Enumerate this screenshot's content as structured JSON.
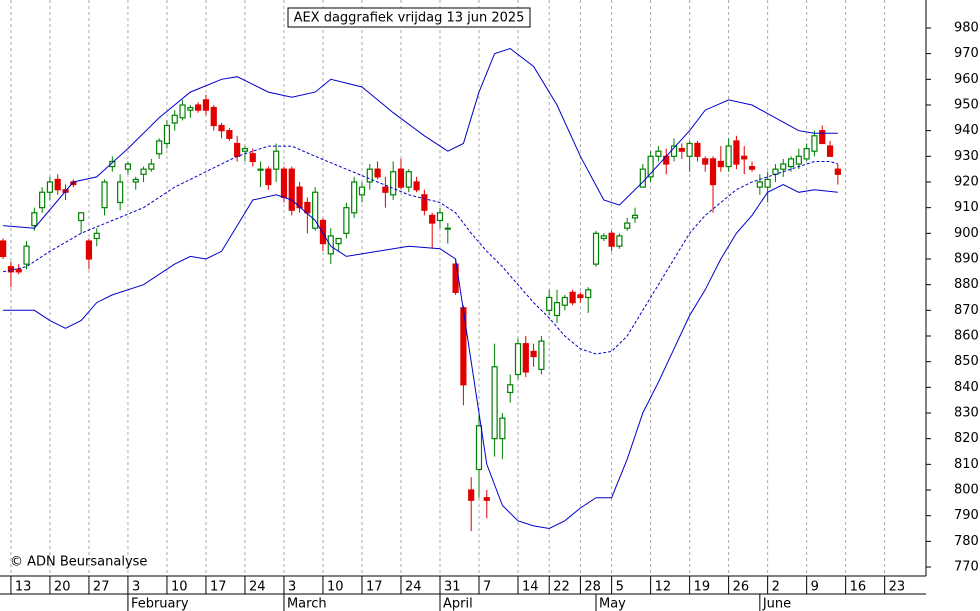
{
  "chart_data": {
    "type": "candlestick",
    "title": "AEX daggrafiek vrijdag 13 jun 2025",
    "credit": "© ADN Beursanalyse",
    "xlim": [
      -0.4,
      118.3
    ],
    "ylim": [
      766.5,
      990.9
    ],
    "yticks": [
      770,
      780,
      790,
      800,
      810,
      820,
      830,
      840,
      850,
      860,
      870,
      880,
      890,
      900,
      910,
      920,
      930,
      940,
      950,
      960,
      970,
      980
    ],
    "xticks": [
      {
        "value": 1,
        "label": "13"
      },
      {
        "value": 6,
        "label": "20"
      },
      {
        "value": 11,
        "label": "27"
      },
      {
        "value": 16,
        "label": "3"
      },
      {
        "value": 21,
        "label": "10"
      },
      {
        "value": 26,
        "label": "17"
      },
      {
        "value": 31,
        "label": "24"
      },
      {
        "value": 36,
        "label": "3"
      },
      {
        "value": 41,
        "label": "10"
      },
      {
        "value": 46,
        "label": "17"
      },
      {
        "value": 51,
        "label": "24"
      },
      {
        "value": 56,
        "label": "31"
      },
      {
        "value": 61,
        "label": "7"
      },
      {
        "value": 66,
        "label": "14"
      },
      {
        "value": 70,
        "label": "22"
      },
      {
        "value": 74,
        "label": "28"
      },
      {
        "value": 78,
        "label": "5"
      },
      {
        "value": 83,
        "label": "12"
      },
      {
        "value": 88,
        "label": "19"
      },
      {
        "value": 93,
        "label": "26"
      },
      {
        "value": 98,
        "label": "2"
      },
      {
        "value": 103,
        "label": "9"
      },
      {
        "value": 108,
        "label": "16"
      },
      {
        "value": 113,
        "label": "23"
      }
    ],
    "month_ticks": [
      {
        "value": 16,
        "label": "February"
      },
      {
        "value": 36,
        "label": "March"
      },
      {
        "value": 56,
        "label": "April"
      },
      {
        "value": 76,
        "label": "May"
      },
      {
        "value": 97,
        "label": "June"
      }
    ],
    "grid": true,
    "up_color": "#008000",
    "down_color": "#e00000",
    "x": [
      0,
      1,
      2,
      3,
      4,
      5,
      6,
      7,
      8,
      9,
      10,
      11,
      12,
      13,
      14,
      15,
      16,
      17,
      18,
      19,
      20,
      21,
      22,
      23,
      24,
      25,
      26,
      27,
      28,
      29,
      30,
      31,
      32,
      33,
      34,
      35,
      36,
      37,
      38,
      39,
      40,
      41,
      42,
      43,
      44,
      45,
      46,
      47,
      48,
      49,
      50,
      51,
      52,
      53,
      54,
      55,
      56,
      57,
      58,
      59,
      60,
      61,
      62,
      63,
      64,
      65,
      66,
      67,
      68,
      69,
      70,
      71,
      72,
      73,
      74,
      75,
      76,
      77,
      78,
      79,
      80,
      81,
      82,
      83,
      84,
      85,
      86,
      87,
      88,
      89,
      90,
      91,
      92,
      93,
      94,
      95,
      96,
      97,
      98,
      99,
      100,
      101,
      102,
      103,
      104,
      105,
      106,
      107
    ],
    "open": [
      897,
      887,
      886,
      888,
      903,
      910,
      916,
      921,
      917,
      920,
      905,
      897,
      898,
      910,
      926,
      912,
      925,
      920,
      923,
      925,
      931,
      935,
      943,
      945,
      948,
      950,
      952,
      949,
      942,
      940,
      935,
      932,
      931,
      925,
      925,
      925,
      925,
      925,
      918,
      912,
      902,
      905,
      892,
      896,
      900,
      908,
      915,
      920,
      925,
      918,
      915,
      925,
      918,
      920,
      915,
      907,
      905,
      902,
      888,
      871,
      800,
      808,
      797,
      820,
      820,
      838,
      845,
      857,
      854,
      847,
      870,
      868,
      872,
      877,
      876,
      875,
      888,
      898,
      900,
      895,
      902,
      906,
      918,
      922,
      930,
      930,
      930,
      933,
      930,
      935,
      929,
      929,
      928,
      926,
      936,
      930,
      926,
      918,
      918,
      923,
      925,
      926,
      927,
      929,
      932,
      940,
      934,
      925
    ],
    "high": [
      898,
      889,
      888,
      897,
      910,
      918,
      922,
      923,
      919,
      921,
      908,
      898,
      902,
      921,
      930,
      923,
      928,
      922,
      926,
      929,
      937,
      944,
      948,
      952,
      950,
      951,
      954,
      950,
      943,
      941,
      938,
      934,
      933,
      928,
      926,
      935,
      926,
      926,
      920,
      914,
      918,
      906,
      902,
      898,
      912,
      922,
      920,
      927,
      928,
      922,
      928,
      929,
      925,
      922,
      917,
      908,
      910,
      904,
      890,
      872,
      805,
      829,
      800,
      857,
      830,
      845,
      859,
      860,
      857,
      860,
      878,
      878,
      876,
      878,
      877,
      879,
      901,
      900,
      901,
      900,
      906,
      910,
      927,
      932,
      934,
      933,
      937,
      935,
      936,
      936,
      930,
      930,
      934,
      937,
      938,
      934,
      928,
      923,
      924,
      927,
      929,
      930,
      933,
      935,
      940,
      942,
      936,
      927
    ],
    "low": [
      890,
      879,
      884,
      886,
      901,
      908,
      913,
      915,
      913,
      918,
      900,
      886,
      895,
      907,
      924,
      909,
      923,
      917,
      920,
      924,
      929,
      933,
      940,
      944,
      945,
      947,
      946,
      940,
      937,
      936,
      928,
      928,
      926,
      918,
      917,
      920,
      912,
      907,
      908,
      900,
      901,
      893,
      888,
      893,
      898,
      906,
      912,
      917,
      921,
      910,
      913,
      917,
      916,
      916,
      907,
      894,
      902,
      896,
      876,
      833,
      784,
      797,
      789,
      813,
      812,
      834,
      843,
      844,
      848,
      845,
      868,
      865,
      870,
      872,
      873,
      869,
      887,
      897,
      893,
      894,
      901,
      904,
      918,
      920,
      928,
      923,
      928,
      929,
      924,
      928,
      924,
      908,
      924,
      924,
      925,
      923,
      924,
      915,
      912,
      920,
      922,
      924,
      925,
      928,
      930,
      937,
      930,
      919
    ],
    "close": [
      891,
      885,
      885,
      895,
      908,
      916,
      920,
      917,
      916,
      919,
      908,
      890,
      900,
      920,
      928,
      920,
      927,
      921,
      925,
      927,
      936,
      942,
      946,
      950,
      949,
      948,
      948,
      942,
      940,
      937,
      930,
      933,
      928,
      925,
      919,
      932,
      914,
      909,
      910,
      908,
      916,
      896,
      899,
      898,
      910,
      920,
      918,
      925,
      922,
      916,
      924,
      918,
      924,
      917,
      909,
      904,
      908,
      902,
      877,
      841,
      796,
      825,
      796,
      848,
      828,
      841,
      857,
      846,
      852,
      858,
      875,
      873,
      875,
      873,
      875,
      878,
      900,
      899,
      895,
      899,
      904,
      907,
      925,
      930,
      932,
      927,
      934,
      932,
      935,
      930,
      927,
      919,
      926,
      934,
      927,
      929,
      925,
      920,
      921,
      925,
      927,
      929,
      930,
      933,
      938,
      935,
      930,
      923
    ],
    "bands": [
      {
        "name": "upper",
        "color": "#0000cc",
        "x": [
          0,
          4,
          9,
          12,
          16,
          20,
          24,
          28,
          30,
          34,
          37,
          40,
          42,
          46,
          50,
          54,
          57,
          59,
          61,
          63,
          65,
          68,
          71,
          74,
          77,
          79,
          82,
          85,
          88,
          90,
          93,
          96,
          99,
          102,
          104,
          107
        ],
        "values": [
          903,
          902,
          920,
          922,
          933,
          945,
          955,
          960,
          961,
          955,
          953,
          955,
          960,
          957,
          947,
          938,
          932,
          935,
          955,
          970,
          972,
          965,
          950,
          930,
          913,
          911,
          920,
          930,
          940,
          948,
          952,
          950,
          945,
          940,
          939,
          939
        ]
      },
      {
        "name": "middle",
        "color": "#0000cc",
        "x": [
          0,
          3,
          6,
          10,
          14,
          18,
          22,
          26,
          30,
          34,
          37,
          40,
          44,
          48,
          52,
          56,
          58,
          60,
          62,
          64,
          66,
          68,
          70,
          72,
          74,
          76,
          78,
          80,
          82,
          84,
          86,
          88,
          90,
          92,
          94,
          96,
          98,
          100,
          102,
          104,
          106,
          107
        ],
        "values": [
          885,
          887,
          893,
          900,
          905,
          910,
          918,
          924,
          930,
          934,
          934,
          930,
          925,
          920,
          915,
          912,
          908,
          900,
          893,
          887,
          880,
          873,
          867,
          860,
          855,
          853,
          854,
          860,
          870,
          880,
          890,
          900,
          907,
          912,
          917,
          920,
          922,
          924,
          926,
          928,
          928,
          927
        ]
      },
      {
        "name": "lower",
        "color": "#0000cc",
        "x": [
          0,
          4,
          6,
          8,
          10,
          12,
          14,
          18,
          22,
          24,
          26,
          28,
          30,
          32,
          35,
          37,
          40,
          42,
          44,
          48,
          52,
          56,
          58,
          60,
          62,
          64,
          66,
          68,
          70,
          72,
          74,
          76,
          78,
          80,
          82,
          84,
          86,
          88,
          90,
          92,
          94,
          96,
          98,
          100,
          102,
          104,
          107
        ],
        "values": [
          870,
          870,
          866,
          863,
          866,
          873,
          876,
          880,
          888,
          891,
          890,
          893,
          903,
          913,
          915,
          913,
          905,
          895,
          891,
          893,
          895,
          894,
          890,
          850,
          810,
          794,
          788,
          786,
          785,
          788,
          793,
          797,
          797,
          812,
          830,
          842,
          855,
          868,
          878,
          890,
          900,
          907,
          916,
          919,
          916,
          917,
          916
        ]
      }
    ]
  }
}
